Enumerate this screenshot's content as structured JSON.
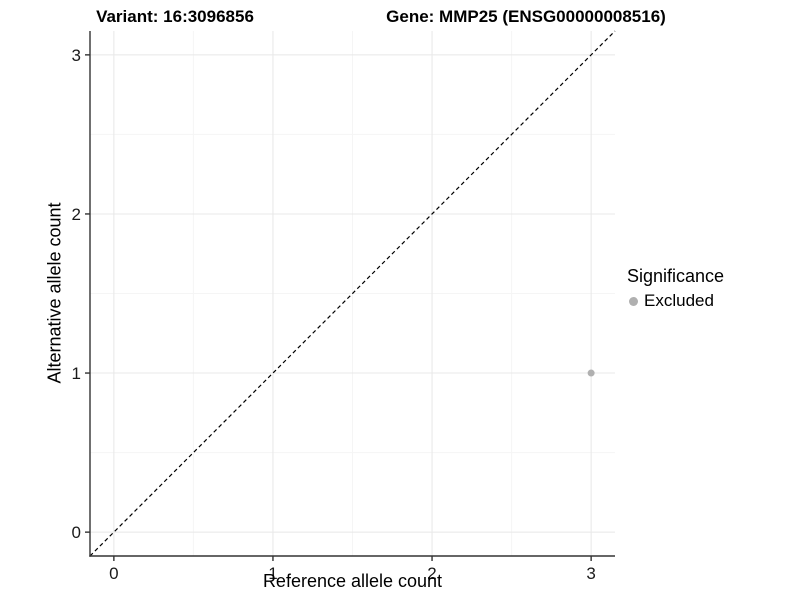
{
  "chart_data": {
    "type": "scatter",
    "titles": {
      "left": "Variant: 16:3096856",
      "right": "Gene: MMP25 (ENSG00000008516)"
    },
    "xlabel": "Reference allele count",
    "ylabel": "Alternative allele count",
    "xlim": [
      -0.15,
      3.15
    ],
    "ylim": [
      -0.15,
      3.15
    ],
    "x_ticks": [
      0,
      1,
      2,
      3
    ],
    "y_ticks": [
      0,
      1,
      2,
      3
    ],
    "x_minor_gridlines": [
      0.5,
      1.5,
      2.5
    ],
    "y_minor_gridlines": [
      0.5,
      1.5,
      2.5
    ],
    "grid": {
      "major": true,
      "minor": true
    },
    "identity_line": {
      "style": "dashed",
      "from": [
        -0.15,
        -0.15
      ],
      "to": [
        3.15,
        3.15
      ],
      "color": "#000000"
    },
    "series": [
      {
        "name": "Excluded",
        "color": "#b0b0b0",
        "points": [
          {
            "x": 3,
            "y": 1
          }
        ]
      }
    ],
    "legend": {
      "title": "Significance",
      "position": "right",
      "items": [
        {
          "label": "Excluded",
          "color": "#b0b0b0",
          "marker": "circle-icon"
        }
      ]
    },
    "colors": {
      "grid_major": "#e8e8e8",
      "grid_minor": "#f5f5f5",
      "axis_line": "#333333",
      "tick_mark": "#333333",
      "tick_label": "#1a1a1a",
      "background": "#ffffff"
    }
  }
}
